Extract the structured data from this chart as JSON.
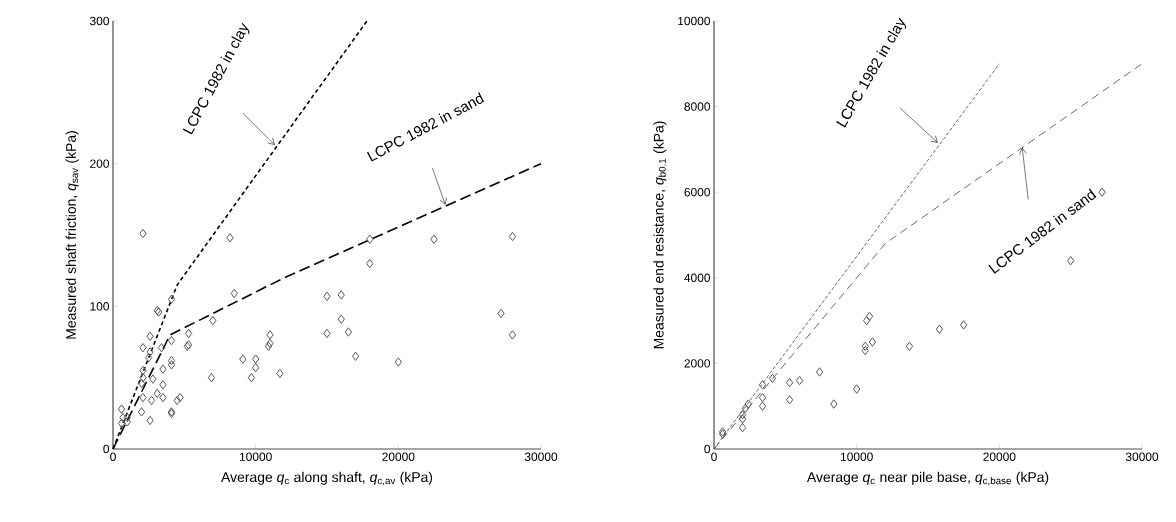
{
  "chart_data": [
    {
      "type": "scatter",
      "xlabel": "Average *q*$_{c}$ along shaft, *q*$_{c,av}$ (kPa)",
      "ylabel": "Measured shaft friction, *q*$_{sav}$ (kPa)",
      "xlim": [
        0,
        30000
      ],
      "ylim": [
        0,
        300
      ],
      "xticks": [
        0,
        10000,
        20000,
        30000
      ],
      "yticks": [
        0,
        100,
        200,
        300
      ],
      "series": [
        {
          "marker": "diamond",
          "color": "#595959",
          "x": [
            2100,
            8200,
            8500,
            15000,
            16000,
            18000,
            18000,
            22500,
            28000,
            16000,
            15000,
            16500,
            17000,
            20000,
            27200,
            28000,
            7000,
            11000,
            11000,
            10900,
            9100,
            10000,
            10000,
            9700,
            11700,
            6900,
            4100,
            3100,
            3200,
            2600,
            5300,
            4100,
            3400,
            5300,
            5200,
            2100,
            2600,
            2500,
            4100,
            4100,
            3500,
            2100,
            2100,
            2000,
            2800,
            3500,
            3100,
            2100,
            2700,
            3500,
            4700,
            4500,
            4100,
            4100,
            2000,
            2600,
            600,
            700,
            1000,
            1000,
            600
          ],
          "values": [
            151,
            148,
            109,
            107,
            108,
            147,
            130,
            147,
            149,
            91,
            81,
            82,
            65,
            61,
            95,
            80,
            90,
            80,
            74,
            72,
            63,
            63,
            57,
            50,
            53,
            50,
            105,
            97,
            96,
            79,
            81,
            76,
            71,
            73,
            72,
            71,
            68,
            64,
            62,
            59,
            56,
            55,
            50,
            46,
            49,
            45,
            39,
            36,
            34,
            36,
            36,
            34,
            26,
            25,
            26,
            20,
            28,
            22,
            22,
            19,
            18
          ]
        },
        {
          "type": "line",
          "marker": "none",
          "color": "#000000",
          "line_style": "dashed",
          "x": [
            0,
            4500,
            17800
          ],
          "values": [
            0,
            115,
            300
          ]
        },
        {
          "type": "line",
          "marker": "none",
          "color": "#000000",
          "line_style": "dashed",
          "x": [
            0,
            4000,
            12000,
            30000
          ],
          "values": [
            0,
            80,
            120,
            200
          ]
        }
      ],
      "annotations": [
        {
          "text": "LCPC 1982 in clay",
          "x": 11350,
          "y": 213
        },
        {
          "text": "LCPC 1982 in sand",
          "x": 23300,
          "y": 171
        }
      ]
    },
    {
      "type": "scatter",
      "xlabel": "Average *q*$_{c}$ near pile base, *q*$_{c,base}$ (kPa)",
      "ylabel": "Measured end resistance, *q*$_{b0.1}$ (kPa)",
      "xlim": [
        0,
        30000
      ],
      "ylim": [
        0,
        10000
      ],
      "xticks": [
        0,
        10000,
        20000,
        30000
      ],
      "yticks": [
        0,
        2000,
        4000,
        6000,
        8000,
        10000
      ],
      "series": [
        {
          "marker": "diamond",
          "color": "#595959",
          "x": [
            10900,
            10700,
            11100,
            10600,
            10600,
            13700,
            10000,
            8400,
            7400,
            6000,
            5300,
            5300,
            4100,
            3400,
            3400,
            3400,
            2400,
            2200,
            2000,
            2000,
            2000,
            600,
            600,
            27200,
            25000,
            17500,
            15800
          ],
          "values": [
            3100,
            3000,
            2500,
            2400,
            2300,
            2400,
            1400,
            1050,
            1800,
            1600,
            1550,
            1150,
            1650,
            1500,
            1200,
            1000,
            1050,
            950,
            800,
            700,
            500,
            400,
            350,
            6000,
            4400,
            2900,
            2800
          ]
        },
        {
          "type": "line",
          "marker": "none",
          "color": "#595959",
          "line_style": "dashed",
          "x": [
            0,
            20000
          ],
          "values": [
            0,
            9000
          ]
        },
        {
          "type": "line",
          "marker": "none",
          "color": "#595959",
          "line_style": "dashed",
          "x": [
            0,
            12000,
            30000
          ],
          "values": [
            0,
            4800,
            9000
          ]
        }
      ],
      "annotations": [
        {
          "text": "LCPC 1982 in clay",
          "x": 15700,
          "y": 7150
        },
        {
          "text": "LCPC 1982 in sand",
          "x": 21600,
          "y": 7050
        }
      ]
    }
  ]
}
